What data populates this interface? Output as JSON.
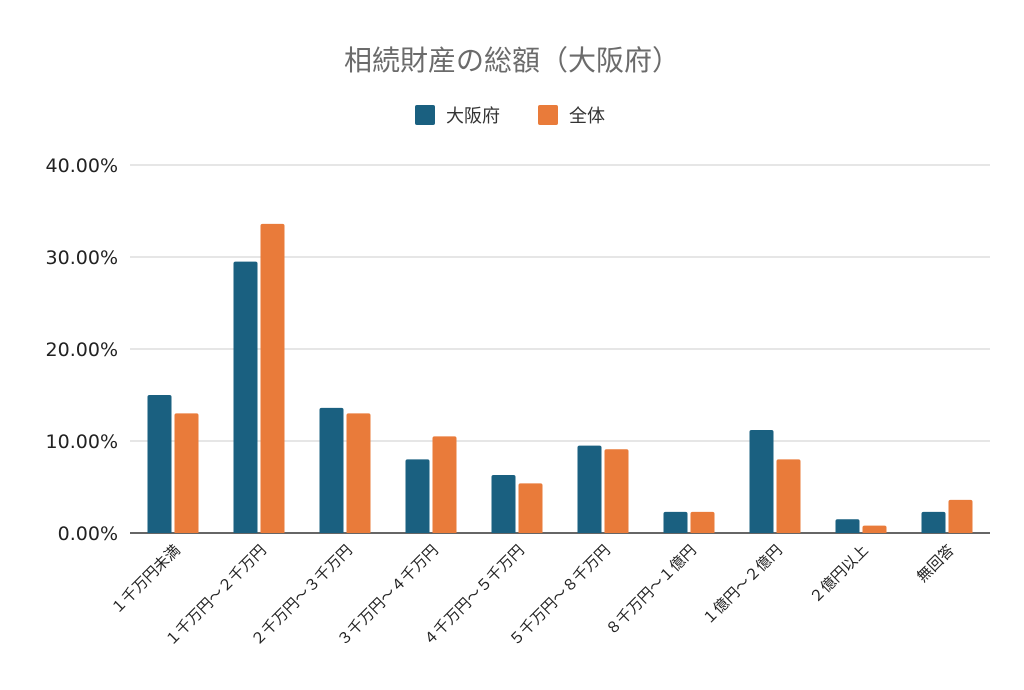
{
  "chart_data": {
    "type": "bar",
    "title": "相続財産の総額（大阪府）",
    "xlabel": "",
    "ylabel": "",
    "ylim": [
      0,
      40
    ],
    "y_ticks": [
      "0.00%",
      "10.00%",
      "20.00%",
      "30.00%",
      "40.00%"
    ],
    "y_tick_values": [
      0,
      10,
      20,
      30,
      40
    ],
    "grid": true,
    "legend_position": "top",
    "categories": [
      "１千万円未満",
      "１千万円～２千万円",
      "２千万円～３千万円",
      "３千万円～４千万円",
      "４千万円～５千万円",
      "５千万円～８千万円",
      "８千万円～１億円",
      "１億円～２億円",
      "２億円以上",
      "無回答"
    ],
    "series": [
      {
        "name": "大阪府",
        "color": "#1a6080",
        "values": [
          15.0,
          29.5,
          13.6,
          8.0,
          6.3,
          9.5,
          2.3,
          11.2,
          1.5,
          2.3
        ]
      },
      {
        "name": "全体",
        "color": "#e97b3a",
        "values": [
          13.0,
          33.6,
          13.0,
          10.5,
          5.4,
          9.1,
          2.3,
          8.0,
          0.8,
          3.6
        ]
      }
    ]
  }
}
